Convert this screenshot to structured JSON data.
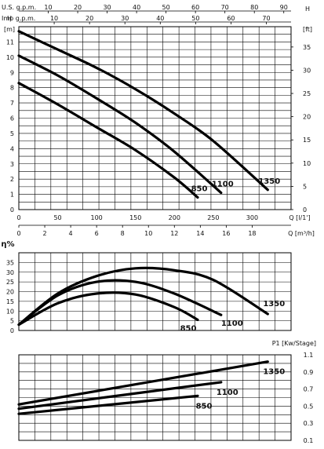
{
  "chart_data": [
    {
      "type": "line",
      "panel": "head",
      "top_axes": [
        {
          "title": "U.S. g.p.m.",
          "ticks": [
            "10",
            "20",
            "30",
            "40",
            "50",
            "60",
            "70",
            "80",
            "90"
          ]
        },
        {
          "title": "Imp g.p.m.",
          "ticks": [
            "10",
            "20",
            "30",
            "40",
            "50",
            "60",
            "70"
          ]
        }
      ],
      "left_axis": {
        "title": "H",
        "unit": "[m]",
        "ticks": [
          "0",
          "1",
          "2",
          "3",
          "4",
          "5",
          "6",
          "7",
          "8",
          "9",
          "10",
          "11"
        ],
        "ylim": [
          0,
          12
        ]
      },
      "right_axis": {
        "title": "H",
        "unit": "[ft]",
        "ticks": [
          "0",
          "5",
          "10",
          "15",
          "20",
          "25",
          "30",
          "35"
        ]
      },
      "x_axis_lpm": {
        "unit": "Q [l/1']",
        "ticks": [
          "0",
          "50",
          "100",
          "150",
          "200",
          "250",
          "300"
        ],
        "xlim": [
          0,
          350
        ]
      },
      "x_axis_m3h": {
        "unit": "Q [m³/h]",
        "ticks": [
          "0",
          "2",
          "4",
          "6",
          "8",
          "10",
          "12",
          "14",
          "16",
          "18"
        ]
      },
      "grid": true,
      "series": [
        {
          "name": "850",
          "x": [
            0,
            50,
            100,
            150,
            200,
            230
          ],
          "y": [
            8.3,
            6.9,
            5.4,
            3.9,
            2.1,
            0.8
          ]
        },
        {
          "name": "1100",
          "x": [
            0,
            50,
            100,
            150,
            200,
            260
          ],
          "y": [
            10.1,
            8.8,
            7.3,
            5.7,
            3.8,
            1.1
          ]
        },
        {
          "name": "1350",
          "x": [
            0,
            50,
            100,
            150,
            200,
            250,
            320
          ],
          "y": [
            11.7,
            10.5,
            9.3,
            7.9,
            6.3,
            4.5,
            1.3
          ]
        }
      ]
    },
    {
      "type": "line",
      "panel": "efficiency",
      "left_axis": {
        "title": "η%",
        "ticks": [
          "0",
          "5",
          "10",
          "15",
          "20",
          "25",
          "30",
          "35"
        ],
        "ylim": [
          0,
          40
        ]
      },
      "grid": true,
      "series": [
        {
          "name": "850",
          "x": [
            0,
            50,
            100,
            150,
            200,
            230
          ],
          "y": [
            3,
            14,
            19,
            18.5,
            12,
            5.5
          ]
        },
        {
          "name": "1100",
          "x": [
            0,
            50,
            100,
            150,
            200,
            260
          ],
          "y": [
            3,
            18,
            25,
            25,
            19,
            8
          ]
        },
        {
          "name": "1350",
          "x": [
            0,
            50,
            100,
            150,
            200,
            250,
            320
          ],
          "y": [
            3,
            19,
            28,
            32,
            31,
            26,
            8.5
          ]
        }
      ]
    },
    {
      "type": "line",
      "panel": "power",
      "right_axis": {
        "title": "P1 [Kw/Stage]",
        "ticks": [
          "0.1",
          "0.3",
          "0.5",
          "0.7",
          "0.9",
          "1.1"
        ],
        "ylim": [
          0.1,
          1.1
        ]
      },
      "grid": true,
      "series": [
        {
          "name": "850",
          "x": [
            0,
            230
          ],
          "y": [
            0.41,
            0.62
          ]
        },
        {
          "name": "1100",
          "x": [
            0,
            260
          ],
          "y": [
            0.47,
            0.78
          ]
        },
        {
          "name": "1350",
          "x": [
            0,
            320
          ],
          "y": [
            0.52,
            1.02
          ]
        }
      ]
    }
  ]
}
